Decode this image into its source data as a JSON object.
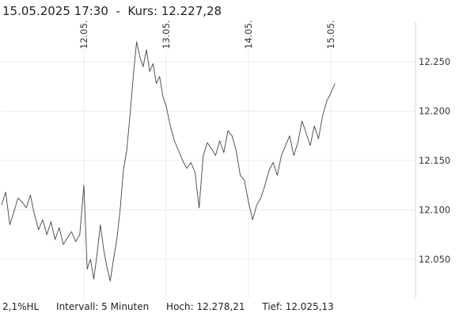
{
  "header": {
    "title": "15.05.2025 17:30  -  Kurs: 12.227,28"
  },
  "footer": {
    "range": "2,1%HL",
    "interval": "Intervall: 5 Minuten",
    "high": "Hoch:  12.278,21",
    "low": "Tief:  12.025,13"
  },
  "chart_data": {
    "type": "line",
    "x_ticks": [
      "12.05.",
      "13.05.",
      "14.05.",
      "15.05."
    ],
    "y_ticks": [
      12050,
      12100,
      12150,
      12200,
      12250
    ],
    "y_tick_labels": [
      "12.050",
      "12.100",
      "12.150",
      "12.200",
      "12.250"
    ],
    "ylim": [
      12010,
      12290
    ],
    "xlim": [
      0,
      4.1
    ],
    "grid": true,
    "line_color": "#444444",
    "series": [
      {
        "x": [
          0,
          0.05,
          0.1,
          0.15,
          0.2,
          0.25,
          0.3,
          0.35,
          0.4,
          0.45,
          0.5,
          0.55,
          0.6,
          0.65,
          0.7,
          0.75,
          0.8,
          0.85,
          0.9,
          0.95,
          1.0,
          1.04,
          1.08,
          1.12,
          1.16,
          1.2,
          1.24,
          1.28,
          1.32,
          1.36,
          1.4,
          1.44,
          1.48,
          1.52,
          1.56,
          1.6,
          1.64,
          1.68,
          1.72,
          1.76,
          1.8,
          1.84,
          1.88,
          1.92,
          1.96,
          2.0,
          2.05,
          2.1,
          2.15,
          2.2,
          2.25,
          2.3,
          2.35,
          2.4,
          2.45,
          2.5,
          2.55,
          2.6,
          2.65,
          2.7,
          2.75,
          2.8,
          2.85,
          2.9,
          2.95,
          3.0,
          3.05,
          3.1,
          3.15,
          3.2,
          3.25,
          3.3,
          3.35,
          3.4,
          3.45,
          3.5,
          3.55,
          3.6,
          3.65,
          3.7,
          3.75,
          3.8,
          3.85,
          3.9,
          3.95,
          4.0,
          4.05
        ],
        "values": [
          12105,
          12118,
          12085,
          12098,
          12112,
          12108,
          12102,
          12115,
          12095,
          12080,
          12090,
          12075,
          12088,
          12070,
          12082,
          12065,
          12072,
          12078,
          12068,
          12075,
          12125,
          12040,
          12050,
          12030,
          12055,
          12085,
          12060,
          12042,
          12028,
          12050,
          12070,
          12100,
          12140,
          12160,
          12195,
          12235,
          12270,
          12255,
          12245,
          12262,
          12240,
          12248,
          12228,
          12235,
          12215,
          12205,
          12185,
          12170,
          12160,
          12150,
          12142,
          12148,
          12138,
          12102,
          12155,
          12168,
          12162,
          12155,
          12170,
          12158,
          12180,
          12175,
          12160,
          12135,
          12130,
          12108,
          12090,
          12105,
          12112,
          12125,
          12140,
          12148,
          12135,
          12155,
          12165,
          12175,
          12155,
          12168,
          12190,
          12178,
          12165,
          12185,
          12172,
          12195,
          12210,
          12218,
          12228
        ]
      }
    ]
  }
}
